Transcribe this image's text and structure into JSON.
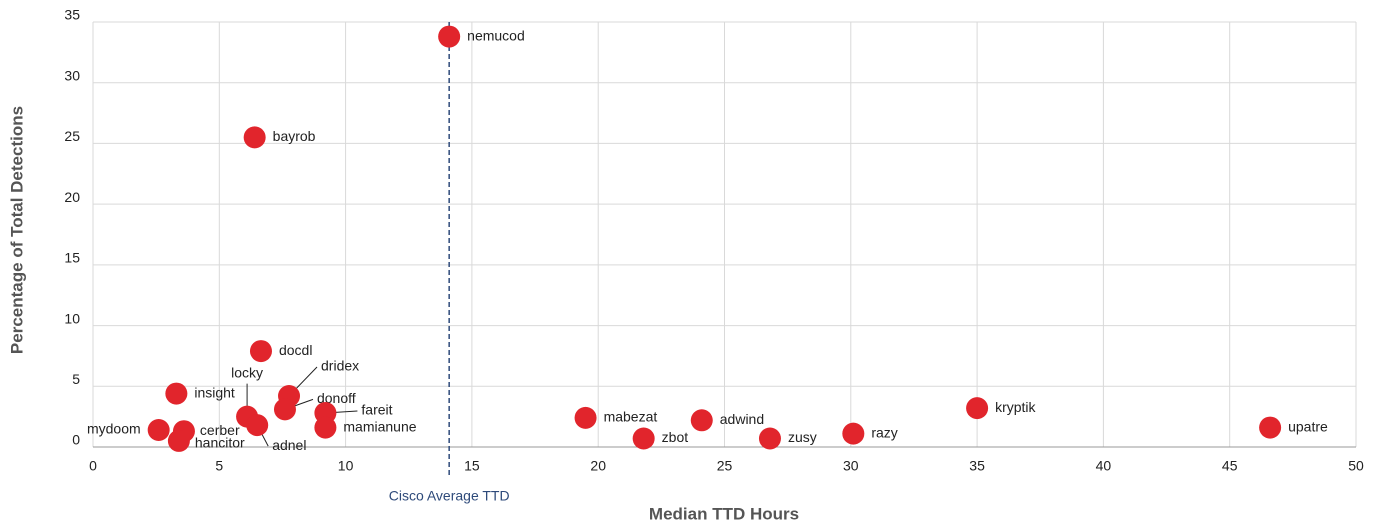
{
  "chart_data": {
    "type": "scatter",
    "xlabel": "Median TTD Hours",
    "ylabel": "Percentage of Total Detections",
    "xlim": [
      0,
      50
    ],
    "xticks": [
      0,
      5,
      10,
      15,
      20,
      25,
      30,
      35,
      40,
      45,
      50
    ],
    "ylim": [
      0,
      35
    ],
    "yticks": [
      0,
      5,
      10,
      15,
      20,
      25,
      30,
      35
    ],
    "grid": true,
    "series": [
      {
        "color": "#e1252c",
        "labels": [
          "nemucod",
          "bayrob",
          "docdl",
          "dridex",
          "donoff",
          "locky",
          "adnel",
          "insight",
          "mydoom",
          "cerber",
          "hancitor",
          "fareit",
          "mamianune",
          "mabezat",
          "zbot",
          "adwind",
          "zusy",
          "razy",
          "kryptik",
          "upatre"
        ],
        "x": [
          14.1,
          6.4,
          6.65,
          7.76,
          7.6,
          6.1,
          6.5,
          3.3,
          2.6,
          3.6,
          3.4,
          9.2,
          9.2,
          19.5,
          21.8,
          24.1,
          26.8,
          30.1,
          35.0,
          46.6
        ],
        "values": [
          33.8,
          25.5,
          7.9,
          4.2,
          3.1,
          2.5,
          1.8,
          4.4,
          1.4,
          1.3,
          0.5,
          2.8,
          1.6,
          2.4,
          0.7,
          2.2,
          0.7,
          1.1,
          3.2,
          1.6
        ]
      }
    ],
    "reference_line": {
      "x": 14.1,
      "label": "Cisco Average TTD",
      "color": "#2e4a7a"
    }
  }
}
